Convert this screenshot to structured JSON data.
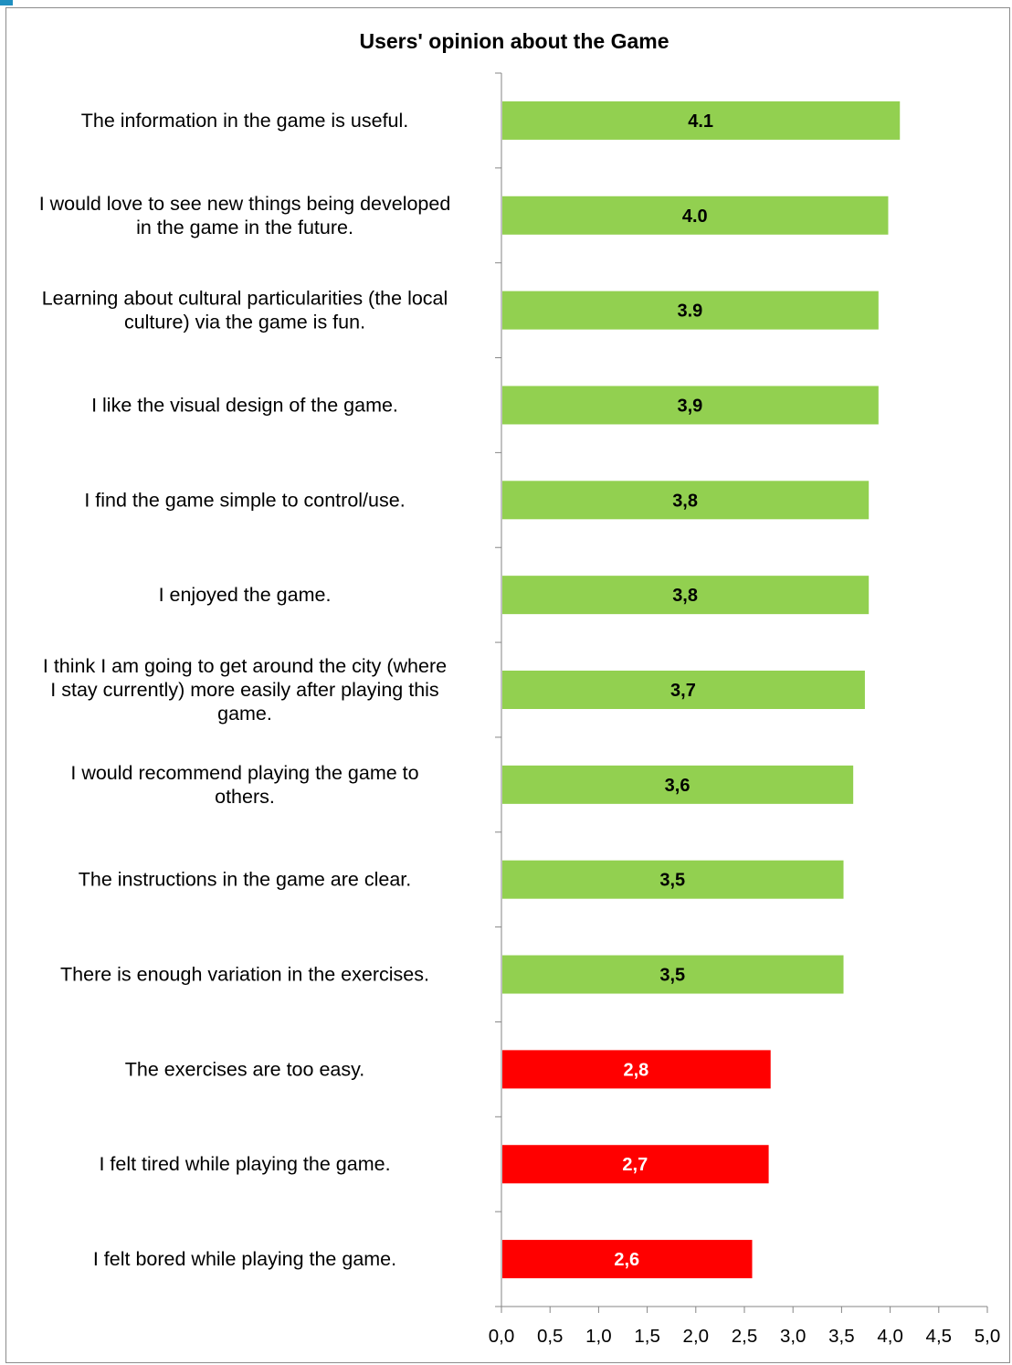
{
  "chart_data": {
    "type": "bar",
    "orientation": "horizontal",
    "title": "Users' opinion about the Game",
    "categories": [
      "The information in the game is useful.",
      "I would love to see new things being developed in the game in the future.",
      "Learning about cultural particularities (the local culture) via the game is fun.",
      "I like the visual design of the game.",
      "I find the game simple to control/use.",
      "I enjoyed the game.",
      "I think I am going to get around the city (where I stay currently) more easily after playing this game.",
      "I would recommend playing the game to others.",
      "The instructions in the game are clear.",
      "There is enough variation in the exercises.",
      "The exercises are too easy.",
      "I felt tired while playing the game.",
      "I felt bored while playing the game."
    ],
    "category_lines": [
      [
        "The information in the game is useful."
      ],
      [
        "I would love to see new things being developed",
        "in the game in the future."
      ],
      [
        "Learning about cultural particularities (the local",
        "culture) via the game is fun."
      ],
      [
        "I like the visual design of the game."
      ],
      [
        "I find the game simple to control/use."
      ],
      [
        "I enjoyed the game."
      ],
      [
        "I think I am going to get around the city (where",
        "I stay currently) more easily after playing this",
        "game."
      ],
      [
        "I would recommend playing the game to",
        "others."
      ],
      [
        "The instructions in the game are clear."
      ],
      [
        "There is enough variation in the exercises."
      ],
      [
        "The exercises are too easy."
      ],
      [
        "I felt tired while playing the game."
      ],
      [
        "I felt bored while playing the game."
      ]
    ],
    "values": [
      4.1,
      3.98,
      3.88,
      3.88,
      3.78,
      3.78,
      3.74,
      3.62,
      3.52,
      3.52,
      2.77,
      2.75,
      2.58
    ],
    "data_labels": [
      "4.1",
      "4.0",
      "3.9",
      "3,9",
      "3,8",
      "3,8",
      "3,7",
      "3,6",
      "3,5",
      "3,5",
      "2,8",
      "2,7",
      "2,6"
    ],
    "bar_colors": [
      "#92d050",
      "#92d050",
      "#92d050",
      "#92d050",
      "#92d050",
      "#92d050",
      "#92d050",
      "#92d050",
      "#92d050",
      "#92d050",
      "#ff0000",
      "#ff0000",
      "#ff0000"
    ],
    "label_colors": [
      "#000000",
      "#000000",
      "#000000",
      "#000000",
      "#000000",
      "#000000",
      "#000000",
      "#000000",
      "#000000",
      "#000000",
      "#ffffff",
      "#ffffff",
      "#ffffff"
    ],
    "xlim": [
      0,
      5
    ],
    "xticks": [
      "0,0",
      "0,5",
      "1,0",
      "1,5",
      "2,0",
      "2,5",
      "3,0",
      "3,5",
      "4,0",
      "4,5",
      "5,0"
    ],
    "xlabel": "",
    "ylabel": "",
    "grid": false,
    "legend": "none"
  }
}
